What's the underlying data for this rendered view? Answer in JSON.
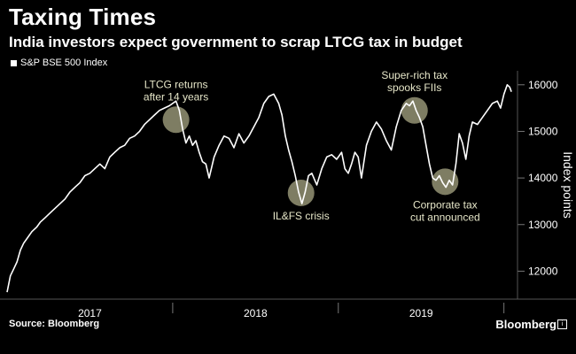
{
  "header": {
    "title": "Taxing Times",
    "subtitle": "India investors expect government to scrap LTCG tax in budget"
  },
  "footer": {
    "source": "Source: Bloomberg",
    "brand": "Bloomberg"
  },
  "colors": {
    "background": "#000000",
    "line": "#ffffff",
    "highlight": "#e6e4b4"
  },
  "chart_data": {
    "type": "line",
    "title": "Taxing Times",
    "subtitle": "India investors expect government to scrap LTCG tax in budget",
    "ylabel": "Index points",
    "ylim": [
      11400,
      16300
    ],
    "yticks": [
      12000,
      13000,
      14000,
      15000,
      16000
    ],
    "xlim": [
      2017.0,
      2020.05
    ],
    "xticks": [
      {
        "label": "2017",
        "x": 2017.5
      },
      {
        "label": "2018",
        "x": 2018.5
      },
      {
        "label": "2019",
        "x": 2019.5
      }
    ],
    "xdividers": [
      2018.0,
      2019.0,
      2020.0
    ],
    "series": [
      {
        "name": "S&P BSE 500 Index",
        "points": [
          [
            2017.0,
            11550
          ],
          [
            2017.02,
            11900
          ],
          [
            2017.04,
            12050
          ],
          [
            2017.06,
            12200
          ],
          [
            2017.08,
            12450
          ],
          [
            2017.1,
            12600
          ],
          [
            2017.12,
            12700
          ],
          [
            2017.15,
            12850
          ],
          [
            2017.18,
            12950
          ],
          [
            2017.2,
            13050
          ],
          [
            2017.23,
            13150
          ],
          [
            2017.26,
            13250
          ],
          [
            2017.29,
            13350
          ],
          [
            2017.32,
            13450
          ],
          [
            2017.35,
            13550
          ],
          [
            2017.38,
            13700
          ],
          [
            2017.41,
            13800
          ],
          [
            2017.44,
            13900
          ],
          [
            2017.47,
            14050
          ],
          [
            2017.5,
            14100
          ],
          [
            2017.53,
            14200
          ],
          [
            2017.56,
            14300
          ],
          [
            2017.59,
            14200
          ],
          [
            2017.62,
            14450
          ],
          [
            2017.65,
            14550
          ],
          [
            2017.68,
            14650
          ],
          [
            2017.71,
            14700
          ],
          [
            2017.74,
            14850
          ],
          [
            2017.77,
            14900
          ],
          [
            2017.8,
            15000
          ],
          [
            2017.83,
            15150
          ],
          [
            2017.86,
            15250
          ],
          [
            2017.89,
            15350
          ],
          [
            2017.92,
            15450
          ],
          [
            2017.95,
            15500
          ],
          [
            2017.98,
            15550
          ],
          [
            2018.02,
            15650
          ],
          [
            2018.04,
            15450
          ],
          [
            2018.06,
            15050
          ],
          [
            2018.08,
            14750
          ],
          [
            2018.1,
            14900
          ],
          [
            2018.12,
            14700
          ],
          [
            2018.14,
            14800
          ],
          [
            2018.16,
            14550
          ],
          [
            2018.18,
            14350
          ],
          [
            2018.2,
            14300
          ],
          [
            2018.22,
            14000
          ],
          [
            2018.25,
            14450
          ],
          [
            2018.28,
            14700
          ],
          [
            2018.31,
            14900
          ],
          [
            2018.34,
            14850
          ],
          [
            2018.37,
            14650
          ],
          [
            2018.4,
            14950
          ],
          [
            2018.43,
            14750
          ],
          [
            2018.46,
            14900
          ],
          [
            2018.49,
            15100
          ],
          [
            2018.52,
            15300
          ],
          [
            2018.55,
            15600
          ],
          [
            2018.58,
            15750
          ],
          [
            2018.61,
            15800
          ],
          [
            2018.64,
            15600
          ],
          [
            2018.66,
            15350
          ],
          [
            2018.68,
            14900
          ],
          [
            2018.7,
            14600
          ],
          [
            2018.72,
            14350
          ],
          [
            2018.74,
            14050
          ],
          [
            2018.76,
            13700
          ],
          [
            2018.78,
            13450
          ],
          [
            2018.8,
            13700
          ],
          [
            2018.82,
            14050
          ],
          [
            2018.84,
            14100
          ],
          [
            2018.87,
            13850
          ],
          [
            2018.9,
            14200
          ],
          [
            2018.93,
            14450
          ],
          [
            2018.96,
            14500
          ],
          [
            2018.99,
            14400
          ],
          [
            2019.02,
            14550
          ],
          [
            2019.04,
            14200
          ],
          [
            2019.06,
            14100
          ],
          [
            2019.08,
            14300
          ],
          [
            2019.1,
            14550
          ],
          [
            2019.12,
            14450
          ],
          [
            2019.14,
            14000
          ],
          [
            2019.17,
            14700
          ],
          [
            2019.2,
            15000
          ],
          [
            2019.23,
            15200
          ],
          [
            2019.26,
            15050
          ],
          [
            2019.29,
            14800
          ],
          [
            2019.32,
            14600
          ],
          [
            2019.35,
            15100
          ],
          [
            2019.38,
            15450
          ],
          [
            2019.41,
            15600
          ],
          [
            2019.43,
            15550
          ],
          [
            2019.45,
            15650
          ],
          [
            2019.47,
            15450
          ],
          [
            2019.49,
            15300
          ],
          [
            2019.51,
            15100
          ],
          [
            2019.53,
            14700
          ],
          [
            2019.55,
            14300
          ],
          [
            2019.57,
            14000
          ],
          [
            2019.59,
            13950
          ],
          [
            2019.61,
            14050
          ],
          [
            2019.63,
            13900
          ],
          [
            2019.65,
            13800
          ],
          [
            2019.67,
            13950
          ],
          [
            2019.69,
            13850
          ],
          [
            2019.71,
            14300
          ],
          [
            2019.73,
            14950
          ],
          [
            2019.75,
            14750
          ],
          [
            2019.77,
            14400
          ],
          [
            2019.79,
            14900
          ],
          [
            2019.81,
            15200
          ],
          [
            2019.84,
            15150
          ],
          [
            2019.87,
            15300
          ],
          [
            2019.9,
            15450
          ],
          [
            2019.93,
            15600
          ],
          [
            2019.96,
            15650
          ],
          [
            2019.98,
            15500
          ],
          [
            2020.0,
            15800
          ],
          [
            2020.02,
            16000
          ],
          [
            2020.035,
            15950
          ],
          [
            2020.045,
            15850
          ]
        ]
      }
    ],
    "annotations": [
      {
        "lines": [
          "LTCG returns",
          "after 14 years"
        ],
        "x": 2018.02,
        "y": 15250,
        "label_above": true
      },
      {
        "lines": [
          "IL&FS crisis"
        ],
        "x": 2018.775,
        "y": 13680,
        "label_above": false
      },
      {
        "lines": [
          "Super-rich tax",
          "spooks FIIs"
        ],
        "x": 2019.46,
        "y": 15450,
        "label_above": true
      },
      {
        "lines": [
          "Corporate tax",
          "cut announced"
        ],
        "x": 2019.645,
        "y": 13920,
        "label_above": false
      }
    ],
    "legend": "top-left"
  }
}
